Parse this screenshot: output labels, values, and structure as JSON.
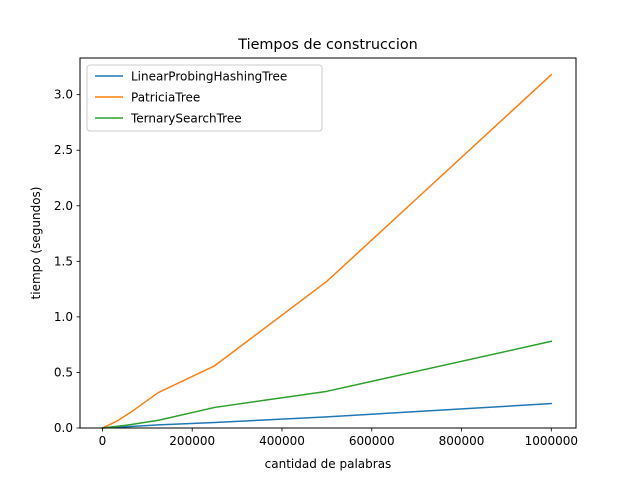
{
  "chart_data": {
    "type": "line",
    "title": "Tiempos de construccion",
    "xlabel": "cantidad de palabras",
    "ylabel": "tiempo (segundos)",
    "xlim": [
      -50000,
      1055000
    ],
    "ylim": [
      0,
      3.33
    ],
    "x_ticks": [
      0,
      200000,
      400000,
      600000,
      800000,
      1000000
    ],
    "x_tick_labels": [
      "0",
      "200000",
      "400000",
      "600000",
      "800000",
      "1000000"
    ],
    "y_ticks": [
      0.0,
      0.5,
      1.0,
      1.5,
      2.0,
      2.5,
      3.0
    ],
    "y_tick_labels": [
      "0.0",
      "0.5",
      "1.0",
      "1.5",
      "2.0",
      "2.5",
      "3.0"
    ],
    "grid": false,
    "legend_position": "top-left",
    "series": [
      {
        "name": "LinearProbingHashingTree",
        "color": "#1f77b4",
        "x": [
          0,
          31250,
          62500,
          125000,
          250000,
          500000,
          1000000
        ],
        "y": [
          0.0,
          0.007,
          0.014,
          0.028,
          0.05,
          0.1,
          0.22
        ]
      },
      {
        "name": "PatriciaTree",
        "color": "#ff7f0e",
        "x": [
          0,
          31250,
          62500,
          125000,
          250000,
          500000,
          1000000
        ],
        "y": [
          0.0,
          0.06,
          0.14,
          0.32,
          0.56,
          1.32,
          3.18
        ]
      },
      {
        "name": "TernarySearchTree",
        "color": "#2ca02c",
        "x": [
          0,
          31250,
          62500,
          125000,
          250000,
          500000,
          1000000
        ],
        "y": [
          0.0,
          0.015,
          0.03,
          0.07,
          0.185,
          0.33,
          0.78
        ]
      }
    ]
  }
}
